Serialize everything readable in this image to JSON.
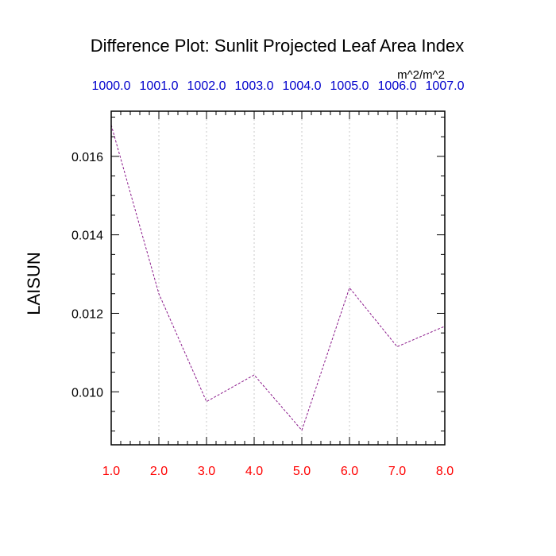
{
  "chart_data": {
    "type": "line",
    "title": "Difference Plot: Sunlit Projected Leaf Area Index",
    "units": "m^2/m^2",
    "ylabel": "LAISUN",
    "xlabel": "",
    "x": [
      1.0,
      2.0,
      3.0,
      4.0,
      5.0,
      6.0,
      7.0,
      8.0
    ],
    "x_tick_labels_bottom": [
      "1.0",
      "2.0",
      "3.0",
      "4.0",
      "5.0",
      "6.0",
      "7.0",
      "8.0"
    ],
    "x_tick_labels_top": [
      "1000.0",
      "1001.0",
      "1002.0",
      "1003.0",
      "1004.0",
      "1005.0",
      "1006.0",
      "1007.0"
    ],
    "y_ticks": [
      0.01,
      0.012,
      0.014,
      0.016
    ],
    "y_tick_labels": [
      "0.010",
      "0.012",
      "0.014",
      "0.016"
    ],
    "xlim": [
      1.0,
      8.0
    ],
    "ylim": [
      0.00865,
      0.01715
    ],
    "grid": "vertical dotted",
    "series": [
      {
        "values": [
          0.0168,
          0.0125,
          0.00975,
          0.01043,
          0.00902,
          0.01265,
          0.01115,
          0.01167
        ]
      }
    ],
    "colors": {
      "line": "#8b1a8b",
      "bottom_tick_labels": "#ff0000",
      "top_tick_labels": "#0000cc",
      "grid": "#c8c8c8",
      "frame": "#000000"
    }
  }
}
